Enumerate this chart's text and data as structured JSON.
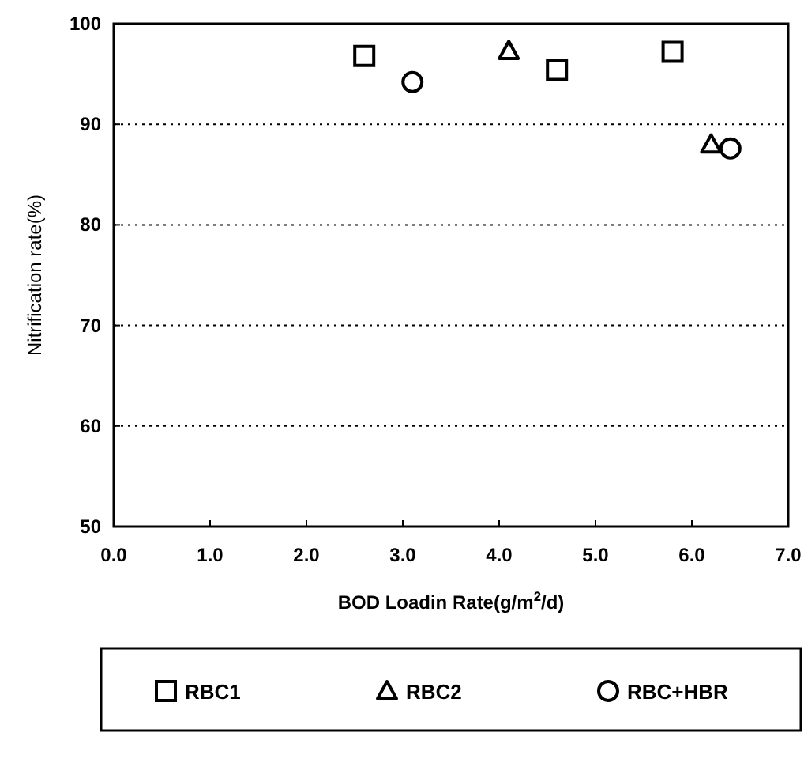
{
  "chart_data": {
    "type": "scatter",
    "xlabel": "BOD Loadin Rate(g/m$^{2}$/d)",
    "ylabel": "Nitrification rate(%)",
    "xlim": [
      0,
      7
    ],
    "xticks": [
      {
        "value": 0,
        "label": "0.0"
      },
      {
        "value": 1,
        "label": "1.0"
      },
      {
        "value": 2,
        "label": "2.0"
      },
      {
        "value": 3,
        "label": "3.0"
      },
      {
        "value": 4,
        "label": "4.0"
      },
      {
        "value": 5,
        "label": "5.0"
      },
      {
        "value": 6,
        "label": "6.0"
      },
      {
        "value": 7,
        "label": "7.0"
      }
    ],
    "ylim": [
      50,
      100
    ],
    "yticks": [
      50,
      60,
      70,
      80,
      90,
      100
    ],
    "grid": "y",
    "legend": "bottom",
    "series": [
      {
        "name": "RBC1",
        "color": "#000000",
        "marker": "square",
        "x": [
          2.6,
          4.6,
          5.8
        ],
        "values": [
          96.8,
          95.4,
          97.2
        ]
      },
      {
        "name": "RBC2",
        "color": "#000000",
        "marker": "triangle",
        "x": [
          4.1,
          6.2
        ],
        "values": [
          97.3,
          88
        ]
      },
      {
        "name": "RBC+HBR",
        "color": "#000000",
        "marker": "circle",
        "x": [
          3.1,
          6.4
        ],
        "values": [
          94.2,
          87.6
        ]
      }
    ]
  }
}
